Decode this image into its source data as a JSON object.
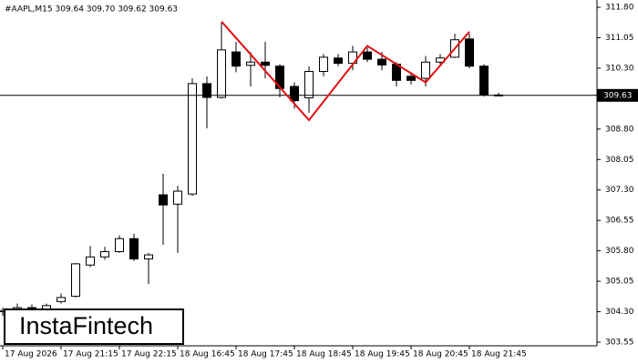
{
  "chart_data": {
    "type": "candlestick",
    "title": "#AAPL,M15  309.64 309.70 309.62 309.63",
    "watermark": "InstaFintech",
    "x": [
      "17 Aug 2026",
      null,
      null,
      null,
      "17 Aug 21:15",
      null,
      null,
      null,
      "17 Aug 22:15",
      null,
      null,
      null,
      "18 Aug 16:45",
      null,
      null,
      null,
      "18 Aug 17:45",
      null,
      null,
      null,
      "18 Aug 18:45",
      null,
      null,
      null,
      "18 Aug 19:45",
      null,
      null,
      null,
      "18 Aug 20:45",
      null,
      null,
      null,
      "18 Aug 21:45",
      null,
      null
    ],
    "open": [
      304.3,
      304.33,
      304.4,
      304.35,
      304.55,
      304.68,
      305.45,
      305.65,
      305.78,
      306.1,
      305.6,
      307.18,
      306.95,
      307.2,
      309.92,
      309.58,
      310.7,
      310.37,
      310.45,
      310.35,
      309.85,
      309.57,
      310.22,
      310.55,
      310.42,
      310.7,
      310.52,
      310.4,
      310.1,
      310.05,
      310.45,
      310.57,
      311.02,
      310.35,
      309.64
    ],
    "high": [
      304.4,
      304.5,
      304.48,
      304.5,
      304.75,
      305.5,
      305.92,
      305.9,
      306.18,
      306.22,
      305.75,
      307.7,
      307.4,
      310.05,
      310.1,
      311.42,
      310.95,
      310.7,
      310.95,
      310.4,
      309.95,
      310.35,
      310.65,
      310.65,
      310.85,
      310.8,
      310.7,
      310.45,
      310.2,
      310.6,
      310.65,
      311.15,
      311.15,
      310.4,
      309.7
    ],
    "low": [
      304.2,
      304.25,
      304.25,
      304.3,
      304.5,
      304.65,
      305.4,
      305.58,
      305.75,
      305.55,
      304.98,
      305.95,
      305.75,
      307.15,
      308.82,
      309.55,
      310.2,
      309.85,
      310.05,
      309.58,
      309.3,
      309.2,
      310.1,
      310.35,
      310.25,
      310.45,
      310.25,
      309.85,
      309.9,
      309.85,
      310.4,
      310.55,
      310.3,
      309.6,
      309.62
    ],
    "close": [
      304.33,
      304.4,
      304.32,
      304.45,
      304.65,
      305.48,
      305.65,
      305.78,
      306.1,
      305.6,
      305.7,
      306.93,
      307.27,
      309.92,
      309.58,
      310.75,
      310.35,
      310.45,
      310.37,
      309.8,
      309.5,
      310.22,
      310.57,
      310.42,
      310.7,
      310.52,
      310.38,
      310.0,
      310.0,
      310.45,
      310.55,
      311.0,
      310.35,
      309.65,
      309.63
    ],
    "up_color": "#ffffff",
    "down_color": "#000000",
    "ylim": [
      303.46,
      311.98
    ],
    "yticks": [
      {
        "value": 311.8,
        "label": "311.80"
      },
      {
        "value": 311.05,
        "label": "311.05"
      },
      {
        "value": 310.3,
        "label": "310.30"
      },
      {
        "value": 308.8,
        "label": "308.80"
      },
      {
        "value": 308.05,
        "label": "308.05"
      },
      {
        "value": 307.3,
        "label": "307.30"
      },
      {
        "value": 306.55,
        "label": "306.55"
      },
      {
        "value": 305.8,
        "label": "305.80"
      },
      {
        "value": 305.05,
        "label": "305.05"
      },
      {
        "value": 304.3,
        "label": "304.30"
      },
      {
        "value": 303.55,
        "label": "303.55"
      }
    ],
    "pattern": {
      "color": "#e31010",
      "points": [
        {
          "index": 15,
          "value": 311.45
        },
        {
          "index": 21,
          "value": 309.02
        },
        {
          "index": 25,
          "value": 310.85
        },
        {
          "index": 29,
          "value": 309.95
        },
        {
          "index": 32,
          "value": 311.2
        }
      ]
    }
  }
}
